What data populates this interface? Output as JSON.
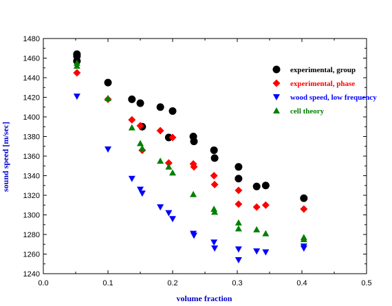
{
  "chart_data": {
    "type": "scatter",
    "xlabel": "volume fraction",
    "ylabel": "sound speed [m/sec]",
    "xlim": [
      0.0,
      0.5
    ],
    "ylim": [
      1240,
      1480
    ],
    "xticks": [
      0.0,
      0.1,
      0.2,
      0.3,
      0.4,
      0.5
    ],
    "yticks": [
      1240,
      1260,
      1280,
      1300,
      1320,
      1340,
      1360,
      1380,
      1400,
      1420,
      1440,
      1460,
      1480
    ],
    "xtick_labels": [
      "0.0",
      "0.1",
      "0.2",
      "0.3",
      "0.4",
      "0.5"
    ],
    "ytick_labels": [
      "1240",
      "1260",
      "1280",
      "1300",
      "1320",
      "1340",
      "1360",
      "1380",
      "1400",
      "1420",
      "1440",
      "1460",
      "1480"
    ],
    "grid": false,
    "legend_position": "top-right",
    "series": [
      {
        "name": "experimental, group",
        "color": "#000000",
        "marker": "circle",
        "points": [
          [
            0.052,
            1464
          ],
          [
            0.052,
            1462
          ],
          [
            0.052,
            1457
          ],
          [
            0.1,
            1435
          ],
          [
            0.137,
            1418
          ],
          [
            0.15,
            1414
          ],
          [
            0.153,
            1390
          ],
          [
            0.181,
            1410
          ],
          [
            0.194,
            1379
          ],
          [
            0.2,
            1406
          ],
          [
            0.232,
            1380
          ],
          [
            0.233,
            1375
          ],
          [
            0.264,
            1366
          ],
          [
            0.265,
            1358
          ],
          [
            0.302,
            1349
          ],
          [
            0.302,
            1337
          ],
          [
            0.33,
            1329
          ],
          [
            0.344,
            1330
          ],
          [
            0.403,
            1317
          ]
        ]
      },
      {
        "name": "experimental, phase",
        "color": "#ff0000",
        "marker": "diamond",
        "points": [
          [
            0.052,
            1445
          ],
          [
            0.1,
            1418
          ],
          [
            0.137,
            1397
          ],
          [
            0.15,
            1391
          ],
          [
            0.153,
            1366
          ],
          [
            0.181,
            1386
          ],
          [
            0.194,
            1353
          ],
          [
            0.2,
            1379
          ],
          [
            0.232,
            1352
          ],
          [
            0.233,
            1349
          ],
          [
            0.264,
            1340
          ],
          [
            0.265,
            1331
          ],
          [
            0.302,
            1325
          ],
          [
            0.302,
            1311
          ],
          [
            0.33,
            1308
          ],
          [
            0.344,
            1310
          ],
          [
            0.403,
            1306
          ]
        ]
      },
      {
        "name": "wood speed, low frequency",
        "color": "#0000ff",
        "marker": "triangle-down",
        "points": [
          [
            0.052,
            1421
          ],
          [
            0.1,
            1367
          ],
          [
            0.137,
            1337
          ],
          [
            0.15,
            1326
          ],
          [
            0.153,
            1322
          ],
          [
            0.181,
            1308
          ],
          [
            0.194,
            1302
          ],
          [
            0.2,
            1296
          ],
          [
            0.232,
            1281
          ],
          [
            0.233,
            1279
          ],
          [
            0.264,
            1272
          ],
          [
            0.265,
            1266
          ],
          [
            0.302,
            1265
          ],
          [
            0.302,
            1254
          ],
          [
            0.33,
            1263
          ],
          [
            0.344,
            1262
          ],
          [
            0.403,
            1268
          ],
          [
            0.403,
            1266
          ]
        ]
      },
      {
        "name": "cell theory",
        "color": "#008000",
        "marker": "triangle-up",
        "points": [
          [
            0.052,
            1455
          ],
          [
            0.052,
            1452
          ],
          [
            0.1,
            1419
          ],
          [
            0.137,
            1389
          ],
          [
            0.15,
            1373
          ],
          [
            0.153,
            1368
          ],
          [
            0.181,
            1355
          ],
          [
            0.194,
            1349
          ],
          [
            0.2,
            1343
          ],
          [
            0.232,
            1321
          ],
          [
            0.264,
            1306
          ],
          [
            0.265,
            1303
          ],
          [
            0.302,
            1292
          ],
          [
            0.302,
            1286
          ],
          [
            0.33,
            1285
          ],
          [
            0.344,
            1281
          ],
          [
            0.403,
            1277
          ],
          [
            0.403,
            1275
          ]
        ]
      }
    ]
  }
}
